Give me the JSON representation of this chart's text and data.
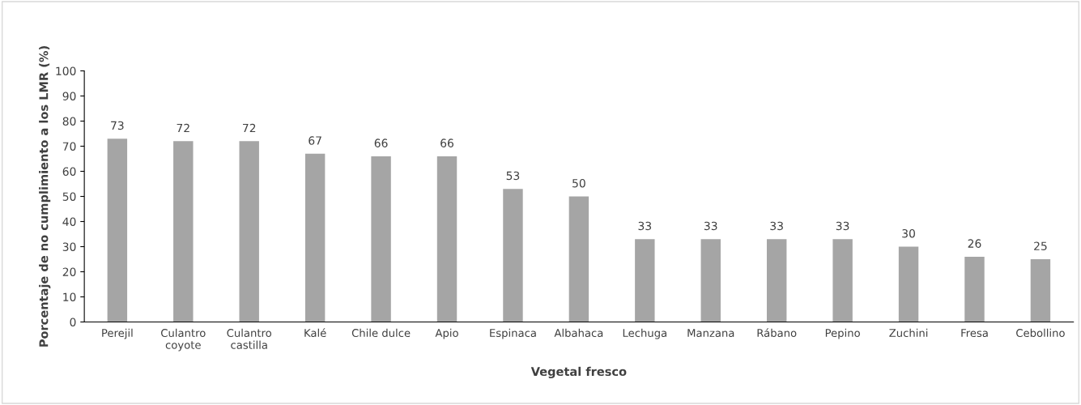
{
  "chart_data": {
    "type": "bar",
    "xlabel": "Vegetal fresco",
    "ylabel": "Porcentaje de no cumplimiento a los LMR (%)",
    "categories": [
      "Perejil",
      "Culantro\ncoyote",
      "Culantro\ncastilla",
      "Kalé",
      "Chile dulce",
      "Apio",
      "Espinaca",
      "Albahaca",
      "Lechuga",
      "Manzana",
      "Rábano",
      "Pepino",
      "Zuchini",
      "Fresa",
      "Cebollino"
    ],
    "values": [
      73,
      72,
      72,
      67,
      66,
      66,
      53,
      50,
      33,
      33,
      33,
      33,
      30,
      26,
      25
    ],
    "color": "#a5a5a5",
    "data_labels": true,
    "ylim": [
      0,
      100
    ],
    "yticks": [
      0,
      10,
      20,
      30,
      40,
      50,
      60,
      70,
      80,
      90,
      100
    ],
    "grid": false,
    "legend": false
  }
}
